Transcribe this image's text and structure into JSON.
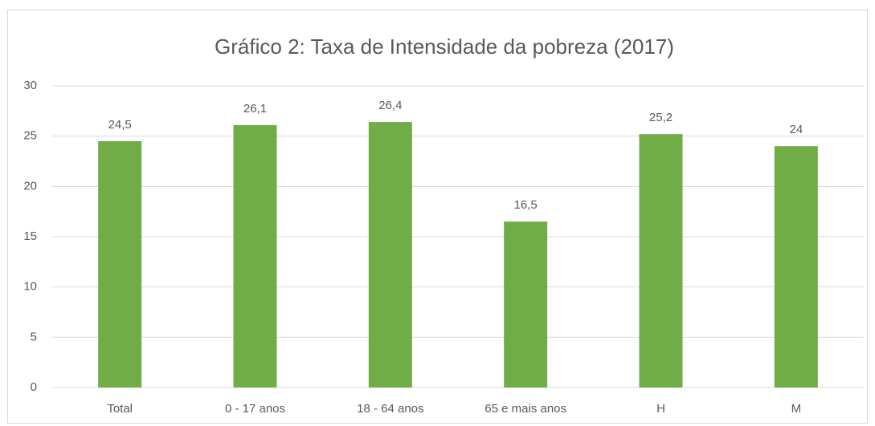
{
  "chart_data": {
    "type": "bar",
    "title": "Gráfico 2: Taxa de Intensidade da pobreza (2017)",
    "categories": [
      "Total",
      "0 - 17 anos",
      "18 - 64 anos",
      "65 e mais anos",
      "H",
      "M"
    ],
    "values": [
      24.5,
      26.1,
      26.4,
      16.5,
      25.2,
      24
    ],
    "value_labels": [
      "24,5",
      "26,1",
      "26,4",
      "16,5",
      "25,2",
      "24"
    ],
    "color": "#70ad47",
    "ylim": [
      0,
      30
    ],
    "yticks": [
      0,
      5,
      10,
      15,
      20,
      25,
      30
    ],
    "grid": true
  }
}
